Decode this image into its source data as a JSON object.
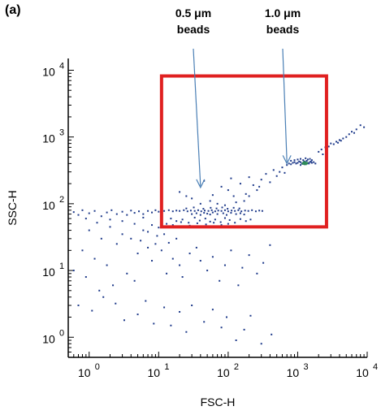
{
  "panel_label": "(a)",
  "annotations": [
    {
      "line1": "0.5 μm",
      "line2": "beads",
      "points_to": [
        40,
        175
      ]
    },
    {
      "line1": "1.0 μm",
      "line2": "beads",
      "points_to": [
        700,
        400
      ]
    }
  ],
  "colors": {
    "points": "#1e3a8a",
    "dense_core": "#2e8b57",
    "gate": "#e02020",
    "arrow": "#4a7fb5",
    "axis": "#000000"
  },
  "chart_data": {
    "type": "scatter",
    "xlabel": "FSC-H",
    "ylabel": "SSC-H",
    "xscale": "log",
    "yscale": "log",
    "xlim": [
      0.5,
      10000
    ],
    "ylim": [
      0.5,
      15000
    ],
    "x_ticks": [
      {
        "base": "10",
        "exp": "0",
        "value": 1
      },
      {
        "base": "10",
        "exp": "1",
        "value": 10
      },
      {
        "base": "10",
        "exp": "2",
        "value": 100
      },
      {
        "base": "10",
        "exp": "3",
        "value": 1000
      },
      {
        "base": "10",
        "exp": "4",
        "value": 10000
      }
    ],
    "y_ticks": [
      {
        "base": "10",
        "exp": "0",
        "value": 1
      },
      {
        "base": "10",
        "exp": "1",
        "value": 10
      },
      {
        "base": "10",
        "exp": "2",
        "value": 100
      },
      {
        "base": "10",
        "exp": "3",
        "value": 1000
      },
      {
        "base": "10",
        "exp": "4",
        "value": 10000
      }
    ],
    "gate": {
      "x": [
        11,
        2600
      ],
      "y": [
        45,
        8200
      ]
    },
    "points": [
      [
        0.6,
        75
      ],
      [
        0.7,
        68
      ],
      [
        0.8,
        80
      ],
      [
        0.9,
        60
      ],
      [
        1.0,
        72
      ],
      [
        1.2,
        78
      ],
      [
        1.5,
        65
      ],
      [
        1.8,
        74
      ],
      [
        2.1,
        80
      ],
      [
        2.5,
        70
      ],
      [
        3.0,
        76
      ],
      [
        3.5,
        68
      ],
      [
        4.0,
        79
      ],
      [
        4.5,
        73
      ],
      [
        5.2,
        77
      ],
      [
        6.0,
        70
      ],
      [
        7.0,
        78
      ],
      [
        8.0,
        74
      ],
      [
        9.0,
        80
      ],
      [
        10,
        76
      ],
      [
        12,
        78
      ],
      [
        14,
        80
      ],
      [
        16,
        77
      ],
      [
        18,
        79
      ],
      [
        20,
        78
      ],
      [
        23,
        80
      ],
      [
        26,
        77
      ],
      [
        29,
        79
      ],
      [
        33,
        78
      ],
      [
        37,
        80
      ],
      [
        41,
        77
      ],
      [
        46,
        79
      ],
      [
        52,
        78
      ],
      [
        58,
        80
      ],
      [
        65,
        77
      ],
      [
        72,
        79
      ],
      [
        80,
        78
      ],
      [
        90,
        80
      ],
      [
        100,
        77
      ],
      [
        112,
        79
      ],
      [
        125,
        78
      ],
      [
        140,
        80
      ],
      [
        155,
        77
      ],
      [
        175,
        79
      ],
      [
        195,
        78
      ],
      [
        220,
        80
      ],
      [
        250,
        77
      ],
      [
        280,
        79
      ],
      [
        310,
        78
      ],
      [
        30,
        70
      ],
      [
        35,
        72
      ],
      [
        40,
        68
      ],
      [
        45,
        73
      ],
      [
        50,
        71
      ],
      [
        55,
        69
      ],
      [
        60,
        74
      ],
      [
        70,
        70
      ],
      [
        85,
        72
      ],
      [
        95,
        68
      ],
      [
        110,
        73
      ],
      [
        130,
        70
      ],
      [
        150,
        72
      ],
      [
        170,
        69
      ],
      [
        25,
        85
      ],
      [
        32,
        88
      ],
      [
        44,
        84
      ],
      [
        56,
        87
      ],
      [
        68,
        85
      ],
      [
        82,
        88
      ],
      [
        98,
        84
      ],
      [
        120,
        87
      ],
      [
        145,
        85
      ],
      [
        15,
        60
      ],
      [
        18,
        55
      ],
      [
        22,
        58
      ],
      [
        27,
        52
      ],
      [
        33,
        62
      ],
      [
        39,
        56
      ],
      [
        47,
        60
      ],
      [
        55,
        54
      ],
      [
        65,
        58
      ],
      [
        78,
        53
      ],
      [
        90,
        61
      ],
      [
        105,
        57
      ],
      [
        125,
        52
      ],
      [
        150,
        59
      ],
      [
        180,
        55
      ],
      [
        210,
        58
      ],
      [
        13,
        50
      ],
      [
        16,
        48
      ],
      [
        21,
        53
      ],
      [
        28,
        47
      ],
      [
        36,
        51
      ],
      [
        48,
        49
      ],
      [
        62,
        52
      ],
      [
        80,
        48
      ],
      [
        100,
        50
      ],
      [
        1.0,
        40
      ],
      [
        1.5,
        30
      ],
      [
        0.8,
        20
      ],
      [
        1.2,
        15
      ],
      [
        0.6,
        10
      ],
      [
        2.0,
        45
      ],
      [
        2.5,
        25
      ],
      [
        3.0,
        35
      ],
      [
        0.9,
        8
      ],
      [
        1.8,
        12
      ],
      [
        4.0,
        30
      ],
      [
        5.0,
        18
      ],
      [
        6.0,
        40
      ],
      [
        3.5,
        9
      ],
      [
        2.2,
        6
      ],
      [
        7.0,
        22
      ],
      [
        8.0,
        14
      ],
      [
        9.5,
        33
      ],
      [
        1.4,
        5
      ],
      [
        4.5,
        7
      ],
      [
        0.7,
        3
      ],
      [
        1.1,
        2.5
      ],
      [
        1.6,
        4
      ],
      [
        2.4,
        3.2
      ],
      [
        3.2,
        1.8
      ],
      [
        5.0,
        2.2
      ],
      [
        6.5,
        3.5
      ],
      [
        8.5,
        1.6
      ],
      [
        12,
        2.8
      ],
      [
        15,
        1.5
      ],
      [
        20,
        2.4
      ],
      [
        25,
        1.2
      ],
      [
        30,
        3.0
      ],
      [
        45,
        1.7
      ],
      [
        60,
        2.6
      ],
      [
        80,
        1.4
      ],
      [
        95,
        2.0
      ],
      [
        130,
        0.9
      ],
      [
        170,
        1.3
      ],
      [
        210,
        2.1
      ],
      [
        300,
        0.8
      ],
      [
        420,
        1.1
      ],
      [
        3.0,
        55
      ],
      [
        4.5,
        50
      ],
      [
        6.0,
        62
      ],
      [
        2.0,
        58
      ],
      [
        1.3,
        52
      ],
      [
        8.0,
        48
      ],
      [
        10,
        44
      ],
      [
        7.0,
        38
      ],
      [
        5.5,
        28
      ],
      [
        9.0,
        25
      ],
      [
        12,
        35
      ],
      [
        14,
        26
      ],
      [
        18,
        30
      ],
      [
        11,
        20
      ],
      [
        16,
        15
      ],
      [
        20,
        12
      ],
      [
        13,
        9
      ],
      [
        22,
        8
      ],
      [
        28,
        18
      ],
      [
        35,
        22
      ],
      [
        40,
        14
      ],
      [
        50,
        10
      ],
      [
        60,
        16
      ],
      [
        75,
        7
      ],
      [
        90,
        12
      ],
      [
        110,
        20
      ],
      [
        140,
        6
      ],
      [
        160,
        11
      ],
      [
        200,
        17
      ],
      [
        260,
        9
      ],
      [
        320,
        13
      ],
      [
        400,
        24
      ],
      [
        20,
        150
      ],
      [
        30,
        120
      ],
      [
        45,
        220
      ],
      [
        60,
        135
      ],
      [
        80,
        180
      ],
      [
        100,
        160
      ],
      [
        120,
        130
      ],
      [
        150,
        200
      ],
      [
        180,
        140
      ],
      [
        200,
        250
      ],
      [
        230,
        190
      ],
      [
        260,
        160
      ],
      [
        300,
        230
      ],
      [
        350,
        280
      ],
      [
        400,
        210
      ],
      [
        450,
        320
      ],
      [
        500,
        260
      ],
      [
        550,
        300
      ],
      [
        600,
        350
      ],
      [
        650,
        290
      ],
      [
        200,
        130
      ],
      [
        170,
        110
      ],
      [
        130,
        105
      ],
      [
        90,
        95
      ],
      [
        70,
        100
      ],
      [
        55,
        110
      ],
      [
        40,
        100
      ],
      [
        25,
        130
      ],
      [
        110,
        240
      ],
      [
        280,
        180
      ],
      [
        700,
        380
      ],
      [
        750,
        400
      ],
      [
        800,
        390
      ],
      [
        850,
        410
      ],
      [
        900,
        420
      ],
      [
        950,
        400
      ],
      [
        1000,
        410
      ],
      [
        1050,
        430
      ],
      [
        1100,
        420
      ],
      [
        1150,
        400
      ],
      [
        1200,
        410
      ],
      [
        1250,
        430
      ],
      [
        1300,
        420
      ],
      [
        1350,
        440
      ],
      [
        1400,
        410
      ],
      [
        1450,
        400
      ],
      [
        1500,
        420
      ],
      [
        1550,
        430
      ],
      [
        1600,
        410
      ],
      [
        900,
        450
      ],
      [
        1000,
        460
      ],
      [
        1100,
        470
      ],
      [
        1200,
        450
      ],
      [
        1300,
        480
      ],
      [
        1400,
        460
      ],
      [
        1500,
        470
      ],
      [
        800,
        440
      ],
      [
        1600,
        450
      ],
      [
        1700,
        420
      ],
      [
        1800,
        400
      ],
      [
        1100,
        380
      ],
      [
        1250,
        390
      ],
      [
        2000,
        600
      ],
      [
        2200,
        650
      ],
      [
        2500,
        700
      ],
      [
        2800,
        720
      ],
      [
        3000,
        800
      ],
      [
        3300,
        780
      ],
      [
        3600,
        850
      ],
      [
        4000,
        900
      ],
      [
        4500,
        950
      ],
      [
        5000,
        1000
      ],
      [
        5500,
        1100
      ],
      [
        6000,
        1200
      ],
      [
        7000,
        1300
      ],
      [
        8000,
        1500
      ],
      [
        9000,
        1400
      ],
      [
        2300,
        550
      ],
      [
        2600,
        680
      ],
      [
        3800,
        820
      ],
      [
        4200,
        880
      ],
      [
        6500,
        1150
      ]
    ],
    "dense_core": [
      [
        1200,
        400
      ],
      [
        1280,
        410
      ],
      [
        1350,
        405
      ],
      [
        1300,
        395
      ],
      [
        1240,
        415
      ]
    ]
  }
}
